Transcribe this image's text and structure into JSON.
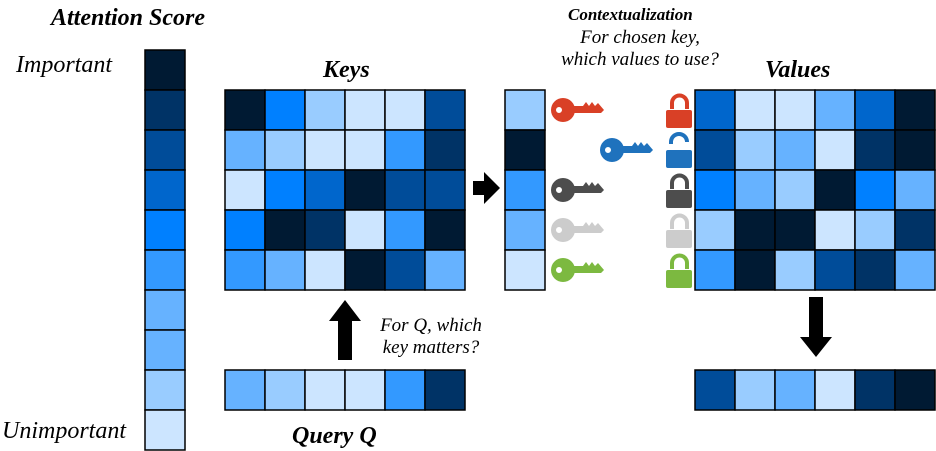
{
  "labels": {
    "attention_title": "Attention Score",
    "important": "Important",
    "unimportant": "Unimportant",
    "keys_title": "Keys",
    "values_title": "Values",
    "query_title": "Query Q",
    "contextualization": "Contextualization",
    "context_caption_1": "For chosen key,",
    "context_caption_2": "which values to use?",
    "query_caption_1": "For  Q, which",
    "query_caption_2": "key matters?"
  },
  "palette": [
    "#001a33",
    "#003366",
    "#004c99",
    "#0066cc",
    "#0080ff",
    "#3399ff",
    "#66b2ff",
    "#99ccff",
    "#cce5ff"
  ],
  "attention_scale": [
    0,
    1,
    2,
    3,
    4,
    5,
    6,
    6,
    7,
    8
  ],
  "keys_matrix": [
    [
      0,
      4,
      7,
      8,
      8,
      2
    ],
    [
      6,
      7,
      8,
      8,
      5,
      1
    ],
    [
      8,
      4,
      3,
      0,
      2,
      2
    ],
    [
      4,
      0,
      1,
      8,
      5,
      0
    ],
    [
      5,
      6,
      8,
      0,
      2,
      6
    ]
  ],
  "selected_key_column": [
    7,
    0,
    5,
    6,
    8
  ],
  "values_matrix": [
    [
      3,
      8,
      8,
      6,
      3,
      0
    ],
    [
      2,
      7,
      6,
      8,
      1,
      0
    ],
    [
      4,
      6,
      7,
      0,
      4,
      6
    ],
    [
      7,
      0,
      0,
      8,
      7,
      1
    ],
    [
      5,
      0,
      7,
      2,
      1,
      6
    ]
  ],
  "query_vector": [
    6,
    7,
    8,
    8,
    5,
    1
  ],
  "output_vector": [
    2,
    7,
    6,
    8,
    1,
    0
  ],
  "key_lock_pairs": [
    {
      "color": "#d94026",
      "lock": "locked"
    },
    {
      "color": "#1f72bd",
      "lock": "unlocked"
    },
    {
      "color": "#4d4d4d",
      "lock": "locked"
    },
    {
      "color": "#cccccc",
      "lock": "locked"
    },
    {
      "color": "#7cb940",
      "lock": "locked"
    }
  ]
}
